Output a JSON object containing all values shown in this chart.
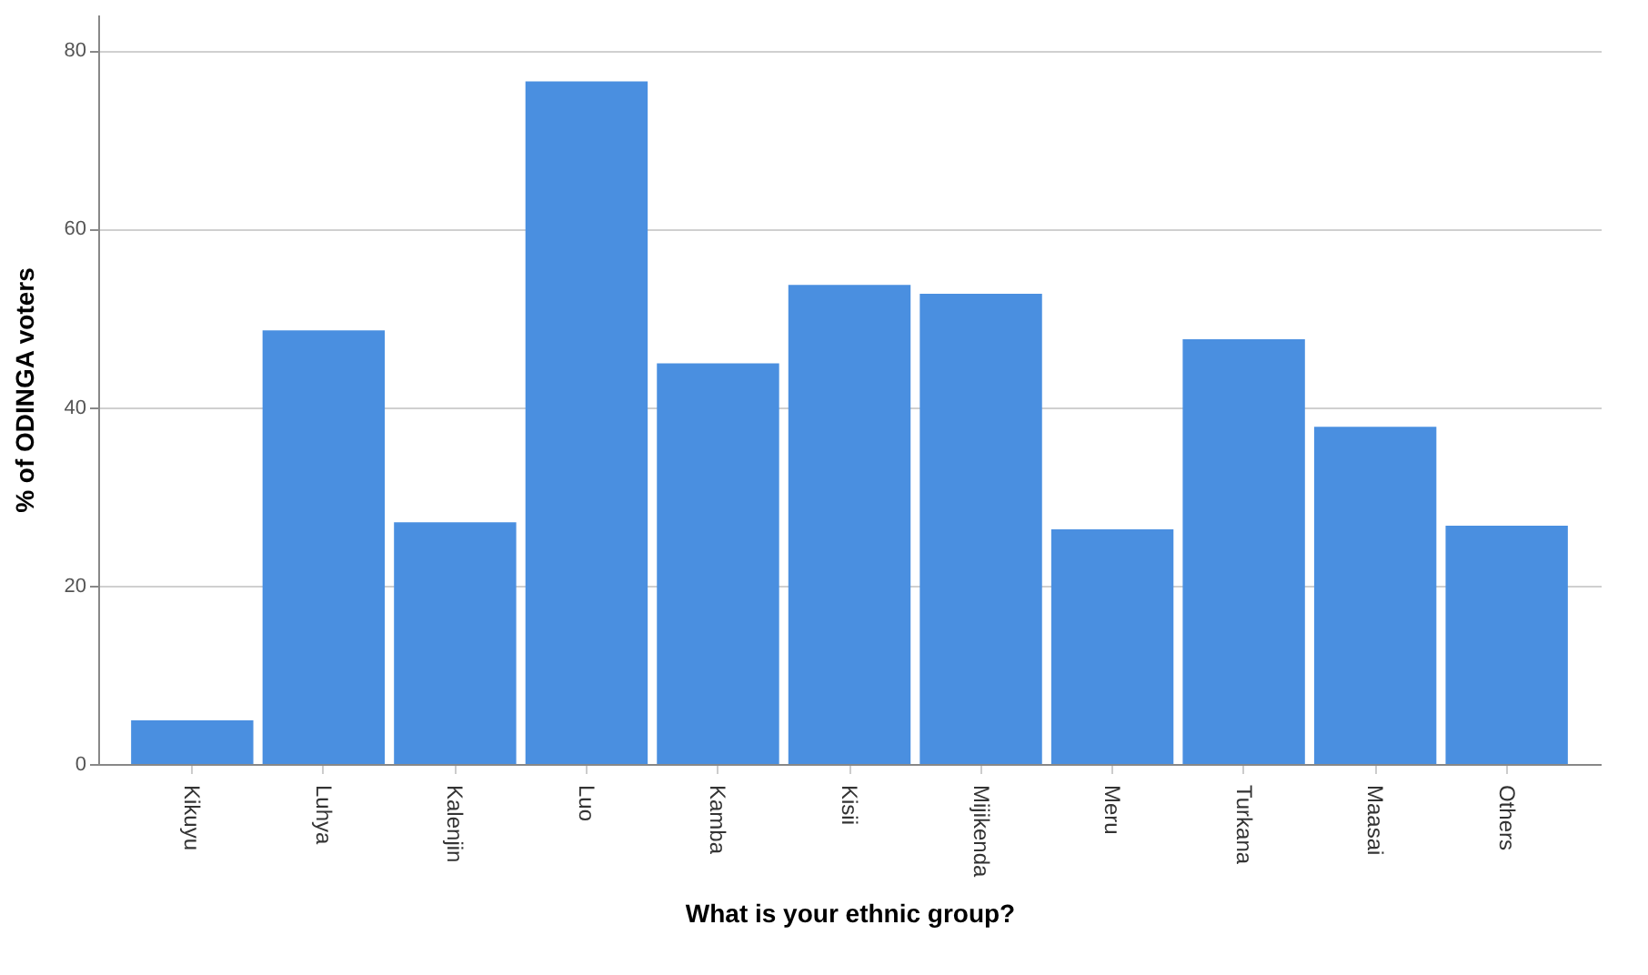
{
  "chart_data": {
    "type": "bar",
    "xlabel": "What is your ethnic group?",
    "ylabel": "% of ODINGA voters",
    "categories": [
      "Kikuyu",
      "Luhya",
      "Kalenjin",
      "Luo",
      "Kamba",
      "Kisii",
      "Mijikenda",
      "Meru",
      "Turkana",
      "Maasai",
      "Others"
    ],
    "values": [
      4.9,
      48.6,
      27.1,
      76.5,
      44.9,
      53.7,
      52.7,
      26.3,
      47.6,
      37.8,
      26.7
    ],
    "color": "#4a8fe0",
    "ylim": [
      0,
      84
    ],
    "yticks": [
      0,
      20,
      40,
      60,
      80
    ],
    "grid": "y"
  }
}
